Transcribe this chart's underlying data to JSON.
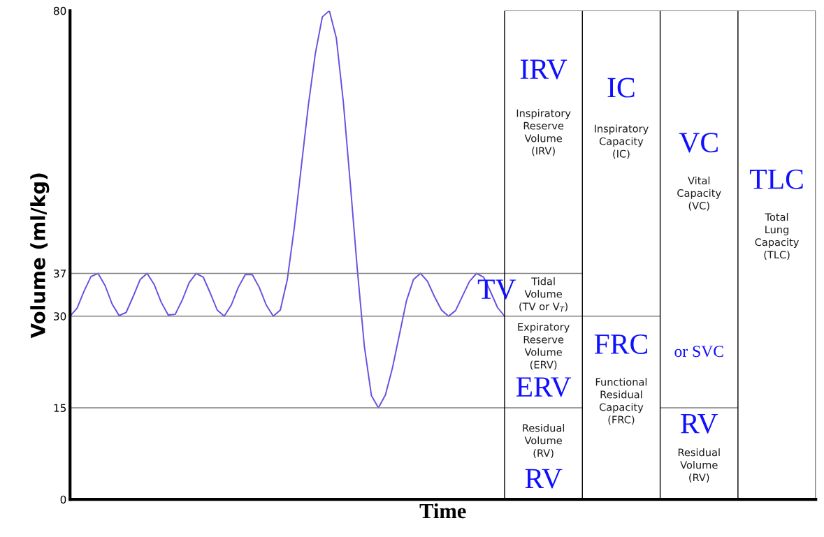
{
  "chart_data": {
    "type": "line",
    "xlabel": "Time",
    "ylabel": "Volume (ml/kg)",
    "categories": [
      null,
      null,
      null,
      null,
      null,
      null,
      null,
      null,
      null,
      null,
      null,
      null,
      null,
      null,
      null,
      null,
      null,
      null,
      null,
      null,
      null,
      null,
      null,
      null,
      null,
      null,
      null,
      null,
      null,
      null,
      null,
      null,
      null,
      null,
      null,
      null,
      null,
      null,
      null,
      null,
      null,
      null,
      null,
      null,
      null,
      null,
      null,
      null,
      null,
      null,
      null,
      null,
      null,
      null,
      null,
      null,
      null,
      null,
      null,
      null,
      null,
      null,
      null
    ],
    "series": [
      {
        "color": "#6a4fe0",
        "values": [
          30,
          31.3,
          34.1,
          36.5,
          37,
          35,
          32,
          30.1,
          30.6,
          33.2,
          36,
          37,
          35.2,
          32.3,
          30.2,
          30.3,
          32.6,
          35.5,
          37,
          36.4,
          33.8,
          31,
          30,
          31.8,
          34.7,
          36.8,
          36.8,
          34.7,
          31.8,
          30,
          31,
          36,
          44.5,
          54.5,
          64.5,
          73,
          79,
          80,
          75.5,
          65,
          51.5,
          37.5,
          25,
          17,
          15,
          17.1,
          21.5,
          27,
          32.5,
          36,
          37,
          35.7,
          33.2,
          31,
          30,
          30.9,
          33.3,
          35.7,
          37,
          36.4,
          34,
          31.4,
          30
        ]
      }
    ],
    "ylim": [
      0,
      80
    ],
    "yticks": [
      0,
      15,
      30,
      37,
      80
    ],
    "ref_lines": [
      {
        "axis": "y",
        "value": 37,
        "color": "#808080"
      },
      {
        "axis": "y",
        "value": 30,
        "color": "#808080"
      },
      {
        "axis": "y",
        "value": 15,
        "color": "#808080"
      }
    ],
    "annotations": [
      "TV",
      "IRV",
      "Inspiratory\nReserve\nVolume\n(IRV)",
      "Tidal\nVolume\n(TV or V$_{T}$)",
      "Expiratory\nReserve\nVolume\n(ERV)",
      "ERV",
      "Residual\nVolume\n(RV)",
      "RV",
      "IC",
      "Inspiratory\nCapacity\n(IC)",
      "FRC",
      "Functional\nResidual\nCapacity\n(FRC)",
      "VC",
      "Vital\nCapacity\n(VC)",
      "or SVC",
      "RV",
      "Residual\nVolume\n(RV)",
      "TLC",
      "Total\nLung\nCapacity\n(TLC)"
    ]
  }
}
